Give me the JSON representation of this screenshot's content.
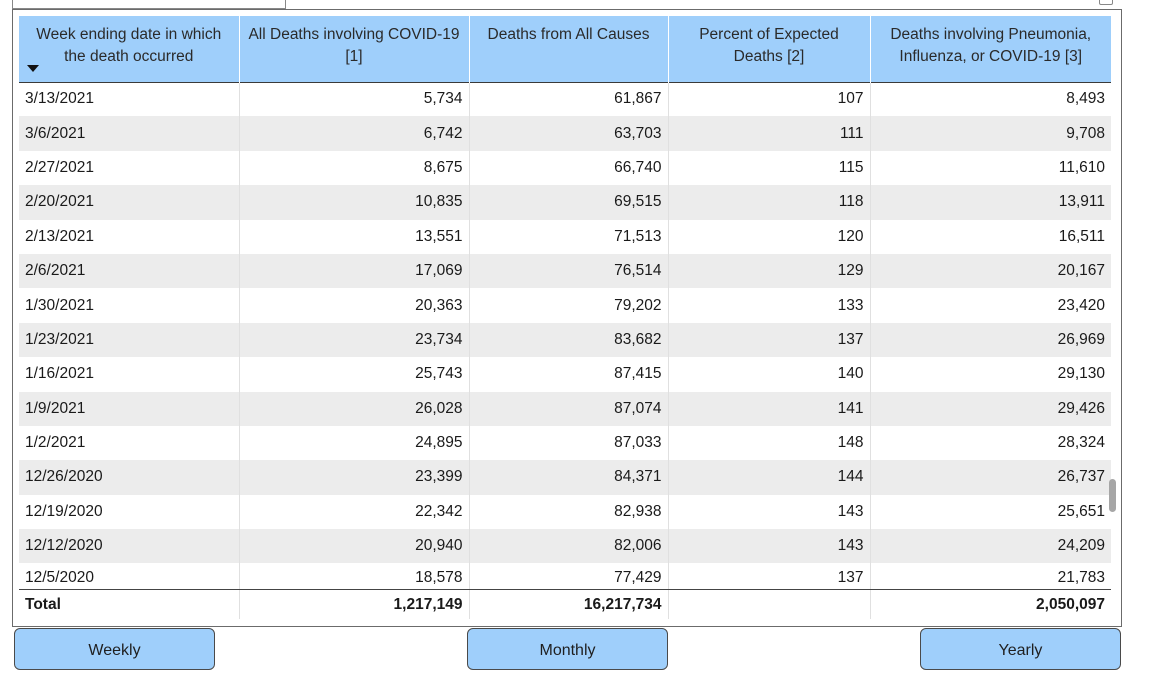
{
  "table": {
    "headers": [
      "Week ending date in which the death occurred",
      "All Deaths involving COVID-19 [1]",
      "Deaths from All Causes",
      "Percent of Expected Deaths [2]",
      "Deaths involving Pneumonia, Influenza, or COVID-19 [3]"
    ],
    "sort_icon": "sort-descending-icon",
    "rows": [
      [
        "3/13/2021",
        "5,734",
        "61,867",
        "107",
        "8,493"
      ],
      [
        "3/6/2021",
        "6,742",
        "63,703",
        "111",
        "9,708"
      ],
      [
        "2/27/2021",
        "8,675",
        "66,740",
        "115",
        "11,610"
      ],
      [
        "2/20/2021",
        "10,835",
        "69,515",
        "118",
        "13,911"
      ],
      [
        "2/13/2021",
        "13,551",
        "71,513",
        "120",
        "16,511"
      ],
      [
        "2/6/2021",
        "17,069",
        "76,514",
        "129",
        "20,167"
      ],
      [
        "1/30/2021",
        "20,363",
        "79,202",
        "133",
        "23,420"
      ],
      [
        "1/23/2021",
        "23,734",
        "83,682",
        "137",
        "26,969"
      ],
      [
        "1/16/2021",
        "25,743",
        "87,415",
        "140",
        "29,130"
      ],
      [
        "1/9/2021",
        "26,028",
        "87,074",
        "141",
        "29,426"
      ],
      [
        "1/2/2021",
        "24,895",
        "87,033",
        "148",
        "28,324"
      ],
      [
        "12/26/2020",
        "23,399",
        "84,371",
        "144",
        "26,737"
      ],
      [
        "12/19/2020",
        "22,342",
        "82,938",
        "143",
        "25,651"
      ],
      [
        "12/12/2020",
        "20,940",
        "82,006",
        "143",
        "24,209"
      ],
      [
        "12/5/2020",
        "18,578",
        "77,429",
        "137",
        "21,783"
      ]
    ],
    "total": [
      "Total",
      "1,217,149",
      "16,217,734",
      "",
      "2,050,097"
    ]
  },
  "buttons": {
    "weekly": "Weekly",
    "monthly": "Monthly",
    "yearly": "Yearly"
  },
  "colors": {
    "header_bg": "#9fcffb",
    "stripe_bg": "#ececec",
    "button_bg": "#9fcffb"
  }
}
